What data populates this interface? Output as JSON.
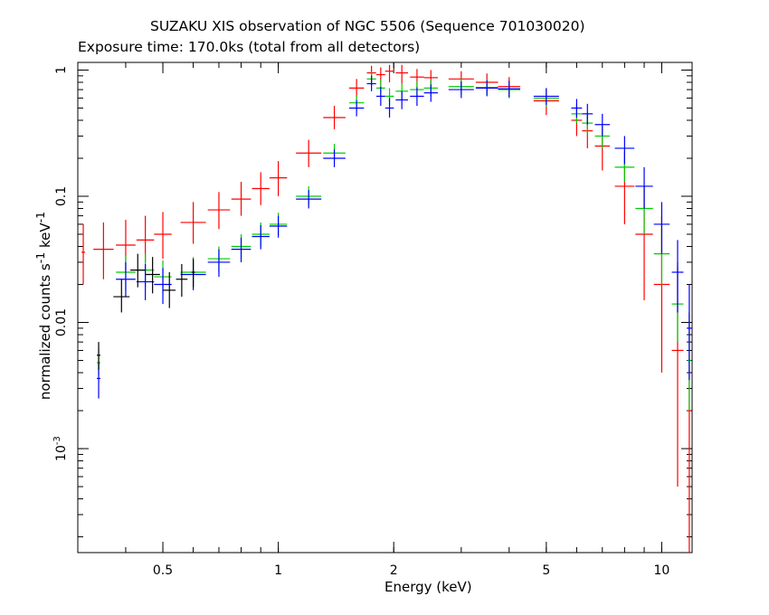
{
  "chart_data": {
    "type": "scatter",
    "title": "SUZAKU XIS observation of NGC 5506 (Sequence 701030020)",
    "subtitle": "Exposure time: 170.0ks (total from all detectors)",
    "xlabel": "Energy (keV)",
    "ylabel_main": "normalized counts s",
    "ylabel_sup1": "-1",
    "ylabel_mid": " keV",
    "ylabel_sup2": "-1",
    "x_scale": "log",
    "y_scale": "log",
    "xlim": [
      0.3,
      12.0
    ],
    "ylim": [
      0.00015,
      1.15
    ],
    "grid": false,
    "x_ticks": [
      {
        "value": 0.5,
        "label": "0.5"
      },
      {
        "value": 1,
        "label": "1"
      },
      {
        "value": 2,
        "label": "2"
      },
      {
        "value": 5,
        "label": "5"
      },
      {
        "value": 10,
        "label": "10"
      }
    ],
    "y_ticks": [
      {
        "value": 1,
        "label": "1"
      },
      {
        "value": 0.1,
        "label": "0.1"
      },
      {
        "value": 0.01,
        "label": "0.01"
      },
      {
        "value": 0.001,
        "label": "10",
        "sup": "-3"
      }
    ],
    "series": [
      {
        "color": "#ff0000",
        "x": [
          0.31,
          0.35,
          0.4,
          0.45,
          0.5,
          0.6,
          0.7,
          0.8,
          0.9,
          1.0,
          1.2,
          1.4,
          1.6,
          1.75,
          1.85,
          1.95,
          2.1,
          2.3,
          2.5,
          3.0,
          3.5,
          4.0,
          5.0,
          6.0,
          6.4,
          7.0,
          8.0,
          9.0,
          10.0,
          11.0,
          11.8
        ],
        "y": [
          0.036,
          0.038,
          0.041,
          0.045,
          0.05,
          0.062,
          0.078,
          0.095,
          0.115,
          0.14,
          0.22,
          0.42,
          0.72,
          0.95,
          0.92,
          0.98,
          0.95,
          0.88,
          0.87,
          0.85,
          0.8,
          0.74,
          0.57,
          0.4,
          0.33,
          0.25,
          0.12,
          0.05,
          0.02,
          0.006,
          0.002
        ],
        "y_low": [
          0.02,
          0.022,
          0.026,
          0.03,
          0.032,
          0.042,
          0.055,
          0.07,
          0.085,
          0.1,
          0.17,
          0.34,
          0.6,
          0.78,
          0.76,
          0.8,
          0.78,
          0.72,
          0.72,
          0.7,
          0.66,
          0.6,
          0.44,
          0.3,
          0.24,
          0.16,
          0.06,
          0.015,
          0.004,
          0.0005,
          0.00015
        ],
        "y_high": [
          0.06,
          0.062,
          0.065,
          0.07,
          0.075,
          0.09,
          0.108,
          0.13,
          0.155,
          0.19,
          0.28,
          0.52,
          0.85,
          1.08,
          1.05,
          1.1,
          1.1,
          1.02,
          1.0,
          0.98,
          0.94,
          0.88,
          0.7,
          0.52,
          0.44,
          0.36,
          0.22,
          0.12,
          0.07,
          0.03,
          0.012
        ]
      },
      {
        "color": "#00cc00",
        "x": [
          0.34,
          0.4,
          0.45,
          0.5,
          0.6,
          0.7,
          0.8,
          0.9,
          1.0,
          1.2,
          1.4,
          1.6,
          1.75,
          1.85,
          1.95,
          2.1,
          2.3,
          2.5,
          3.0,
          3.5,
          4.0,
          5.0,
          6.0,
          6.4,
          7.0,
          8.0,
          9.0,
          10.0,
          11.0,
          11.8
        ],
        "y": [
          0.0048,
          0.025,
          0.026,
          0.023,
          0.025,
          0.032,
          0.04,
          0.05,
          0.06,
          0.1,
          0.22,
          0.55,
          0.85,
          0.72,
          0.62,
          0.68,
          0.7,
          0.72,
          0.74,
          0.73,
          0.7,
          0.6,
          0.45,
          0.38,
          0.3,
          0.17,
          0.08,
          0.035,
          0.014,
          0.005
        ],
        "y_low": [
          0.0038,
          0.018,
          0.019,
          0.017,
          0.019,
          0.025,
          0.032,
          0.04,
          0.049,
          0.085,
          0.19,
          0.48,
          0.75,
          0.62,
          0.53,
          0.58,
          0.6,
          0.62,
          0.64,
          0.63,
          0.6,
          0.51,
          0.38,
          0.31,
          0.24,
          0.13,
          0.05,
          0.02,
          0.007,
          0.002
        ],
        "y_high": [
          0.0062,
          0.034,
          0.035,
          0.031,
          0.033,
          0.04,
          0.05,
          0.062,
          0.074,
          0.12,
          0.26,
          0.63,
          0.97,
          0.84,
          0.72,
          0.79,
          0.82,
          0.84,
          0.86,
          0.85,
          0.82,
          0.71,
          0.54,
          0.46,
          0.37,
          0.23,
          0.12,
          0.06,
          0.028,
          0.012
        ]
      },
      {
        "color": "#0000ff",
        "x": [
          0.34,
          0.4,
          0.45,
          0.5,
          0.6,
          0.7,
          0.8,
          0.9,
          1.0,
          1.2,
          1.4,
          1.6,
          1.75,
          1.85,
          1.95,
          2.1,
          2.3,
          2.5,
          3.0,
          3.5,
          4.0,
          5.0,
          6.0,
          6.4,
          7.0,
          8.0,
          9.0,
          10.0,
          11.0,
          11.8
        ],
        "y": [
          0.0036,
          0.022,
          0.021,
          0.02,
          0.024,
          0.03,
          0.038,
          0.048,
          0.058,
          0.095,
          0.2,
          0.5,
          0.78,
          0.62,
          0.5,
          0.58,
          0.62,
          0.66,
          0.7,
          0.72,
          0.71,
          0.62,
          0.5,
          0.45,
          0.37,
          0.24,
          0.12,
          0.06,
          0.025,
          0.009
        ],
        "y_low": [
          0.0025,
          0.016,
          0.015,
          0.014,
          0.018,
          0.023,
          0.03,
          0.038,
          0.047,
          0.08,
          0.17,
          0.43,
          0.68,
          0.52,
          0.42,
          0.49,
          0.52,
          0.56,
          0.6,
          0.62,
          0.61,
          0.53,
          0.42,
          0.37,
          0.3,
          0.18,
          0.08,
          0.035,
          0.012,
          0.0035
        ],
        "y_high": [
          0.0048,
          0.03,
          0.029,
          0.027,
          0.031,
          0.038,
          0.047,
          0.059,
          0.07,
          0.112,
          0.235,
          0.58,
          0.9,
          0.74,
          0.6,
          0.68,
          0.73,
          0.77,
          0.81,
          0.83,
          0.82,
          0.72,
          0.59,
          0.54,
          0.45,
          0.3,
          0.17,
          0.09,
          0.045,
          0.02
        ]
      },
      {
        "color": "#000000",
        "x": [
          0.34,
          0.39,
          0.43,
          0.47,
          0.52,
          0.56,
          0.6
        ],
        "y": [
          0.0055,
          0.016,
          0.026,
          0.024,
          0.018,
          0.022,
          0.025
        ],
        "y_low": [
          0.0042,
          0.012,
          0.019,
          0.017,
          0.013,
          0.016,
          0.019
        ],
        "y_high": [
          0.007,
          0.022,
          0.035,
          0.033,
          0.025,
          0.029,
          0.032
        ]
      }
    ]
  }
}
